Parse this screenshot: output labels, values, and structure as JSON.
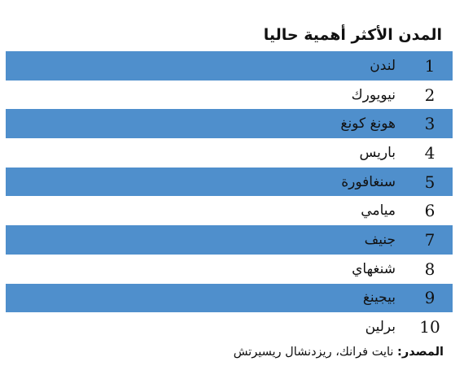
{
  "title": "المدن الأكثر أهمية حاليا",
  "rows": [
    {
      "rank": "1",
      "city": "لندن"
    },
    {
      "rank": "2",
      "city": "نيويورك"
    },
    {
      "rank": "3",
      "city": "هونغ كونغ"
    },
    {
      "rank": "4",
      "city": "باريس"
    },
    {
      "rank": "5",
      "city": "سنغافورة"
    },
    {
      "rank": "6",
      "city": "ميامي"
    },
    {
      "rank": "7",
      "city": "جنيف"
    },
    {
      "rank": "8",
      "city": "شنغهاي"
    },
    {
      "rank": "9",
      "city": "بيجينغ"
    },
    {
      "rank": "10",
      "city": "برلين"
    }
  ],
  "source": {
    "label": "المصدر:",
    "text": " نايت فرانك، ريزدنشال ريسيرتش"
  },
  "colors": {
    "stripe": "#4f8fcc"
  }
}
